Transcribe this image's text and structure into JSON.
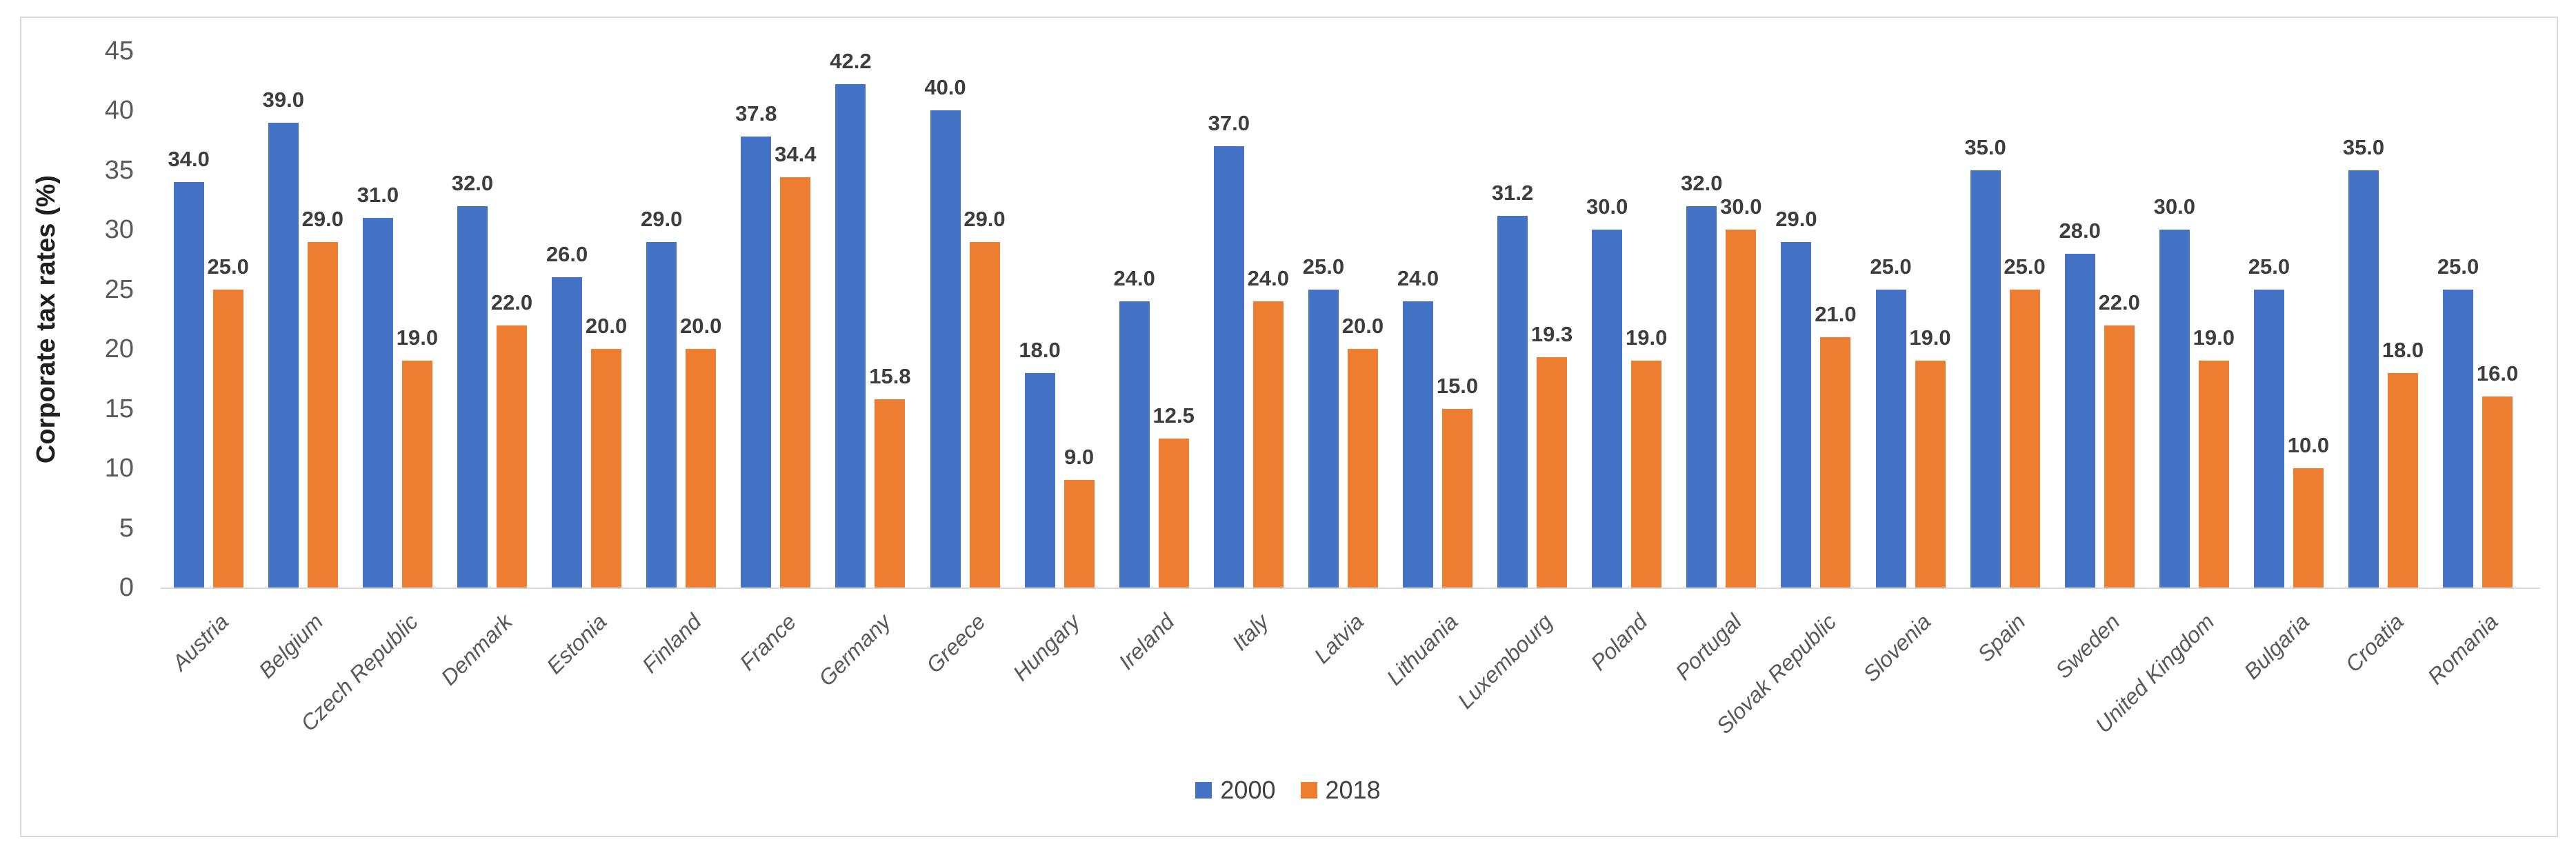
{
  "chart_data": {
    "type": "bar",
    "title": "",
    "ylabel": "Corporate tax rates (%)",
    "xlabel": "",
    "ylim": [
      0,
      45
    ],
    "yticks": [
      0,
      5,
      10,
      15,
      20,
      25,
      30,
      35,
      40,
      45
    ],
    "grid": false,
    "legend_position": "bottom-center",
    "data_label_format": "one-decimal",
    "categories": [
      "Austria",
      "Belgium",
      "Czech Republic",
      "Denmark",
      "Estonia",
      "Finland",
      "France",
      "Germany",
      "Greece",
      "Hungary",
      "Ireland",
      "Italy",
      "Latvia",
      "Lithuania",
      "Luxembourg",
      "Poland",
      "Portugal",
      "Slovak Republic",
      "Slovenia",
      "Spain",
      "Sweden",
      "United Kingdom",
      "Bulgaria",
      "Croatia",
      "Romania"
    ],
    "series": [
      {
        "name": "2000",
        "color": "#4472C4",
        "values": [
          34.0,
          39.0,
          31.0,
          32.0,
          26.0,
          29.0,
          37.8,
          42.2,
          40.0,
          18.0,
          24.0,
          37.0,
          25.0,
          24.0,
          31.2,
          30.0,
          32.0,
          29.0,
          25.0,
          35.0,
          28.0,
          30.0,
          25.0,
          35.0,
          25.0
        ]
      },
      {
        "name": "2018",
        "color": "#ED7D31",
        "values": [
          25.0,
          29.0,
          19.0,
          22.0,
          20.0,
          20.0,
          34.4,
          15.8,
          29.0,
          9.0,
          12.5,
          24.0,
          20.0,
          15.0,
          19.3,
          19.0,
          30.0,
          21.0,
          19.0,
          25.0,
          22.0,
          19.0,
          10.0,
          18.0,
          16.0
        ]
      }
    ]
  },
  "colors": {
    "background": "#ffffff",
    "frame_border": "#d8d8d8",
    "axis_line": "#d9d9d9",
    "tick_text": "#595959",
    "category_text": "#595959",
    "data_label_text": "#3d3d3d",
    "y_title_text": "#1f1f1f",
    "legend_text": "#404040",
    "series_2000": "#4472C4",
    "series_2018": "#ED7D31"
  }
}
